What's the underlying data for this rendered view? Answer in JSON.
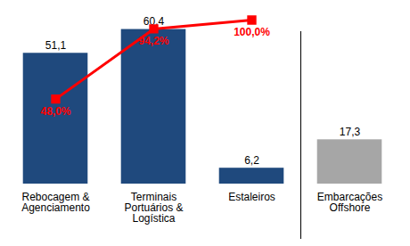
{
  "chart_data": {
    "type": "bar",
    "categories": [
      "Rebocagem & Agenciamento",
      "Terminais Portuários & Logística",
      "Estaleiros",
      "Embarcações Offshore"
    ],
    "series": [
      {
        "type": "bar",
        "values": [
          51.1,
          60.4,
          6.2,
          17.3
        ],
        "value_labels": [
          "51,1",
          "60,4",
          "6,2",
          "17,3"
        ],
        "colors": [
          "#1f497d",
          "#1f497d",
          "#1f497d",
          "#a6a6a6"
        ]
      },
      {
        "type": "line",
        "axis": "y2",
        "values": [
          48.0,
          94.2,
          100.0,
          null
        ],
        "value_labels": [
          "48,0%",
          "94,2%",
          "100,0%",
          null
        ],
        "color": "#ff0000",
        "marker": "square",
        "line_style": "solid"
      }
    ],
    "ylim": [
      0,
      70
    ],
    "yticks": [],
    "y2lim": [
      -8,
      110
    ],
    "y2ticks": [],
    "data_labels": true,
    "tick_labels": "x",
    "grid": false
  }
}
